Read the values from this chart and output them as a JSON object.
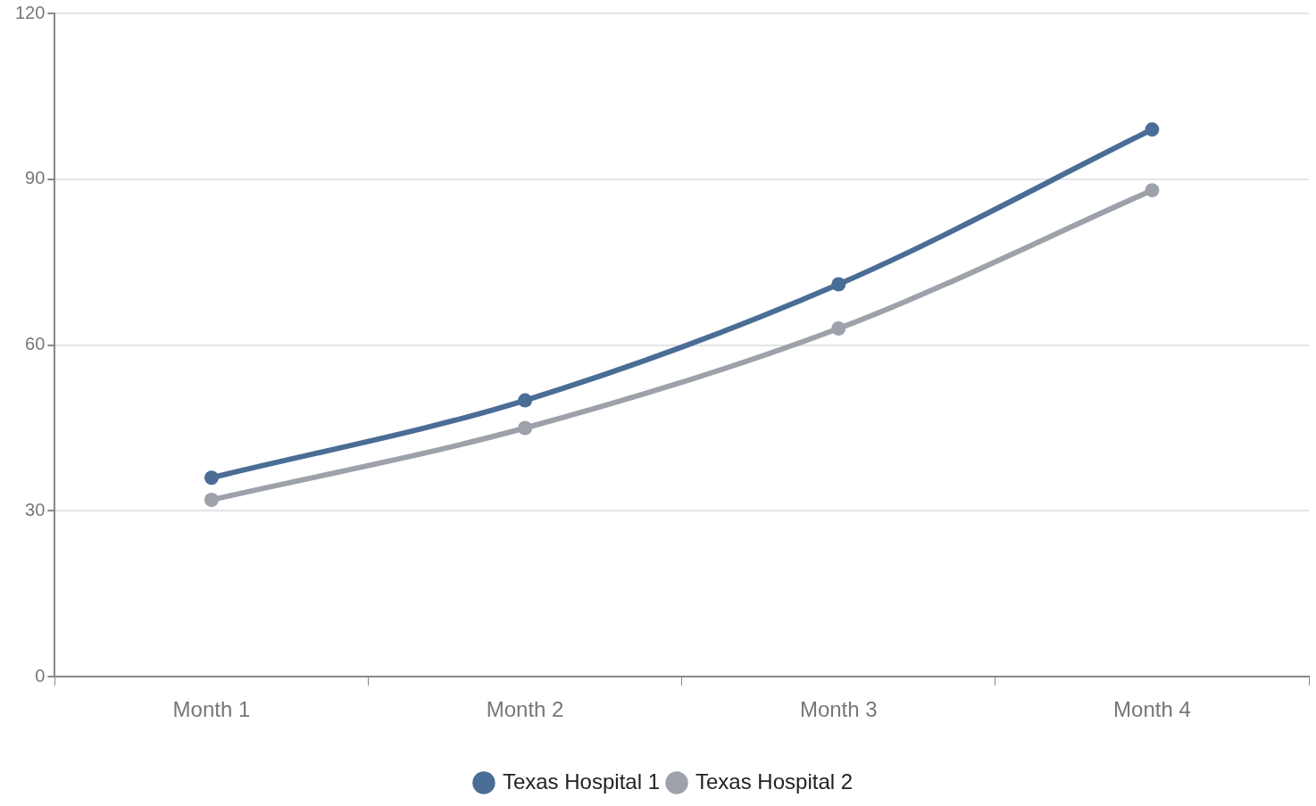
{
  "chart_data": {
    "type": "line",
    "categories": [
      "Month 1",
      "Month 2",
      "Month 3",
      "Month 4"
    ],
    "series": [
      {
        "name": "Texas Hospital 1",
        "color": "#4a6d96",
        "values": [
          36,
          50,
          71,
          99
        ]
      },
      {
        "name": "Texas Hospital 2",
        "color": "#9da1aa",
        "values": [
          32,
          45,
          63,
          88
        ]
      }
    ],
    "ylim": [
      0,
      120
    ],
    "yticks": [
      0,
      30,
      60,
      90,
      120
    ],
    "grid": "y",
    "legend": "bottom",
    "marker": "circle",
    "line_style": "solid"
  }
}
